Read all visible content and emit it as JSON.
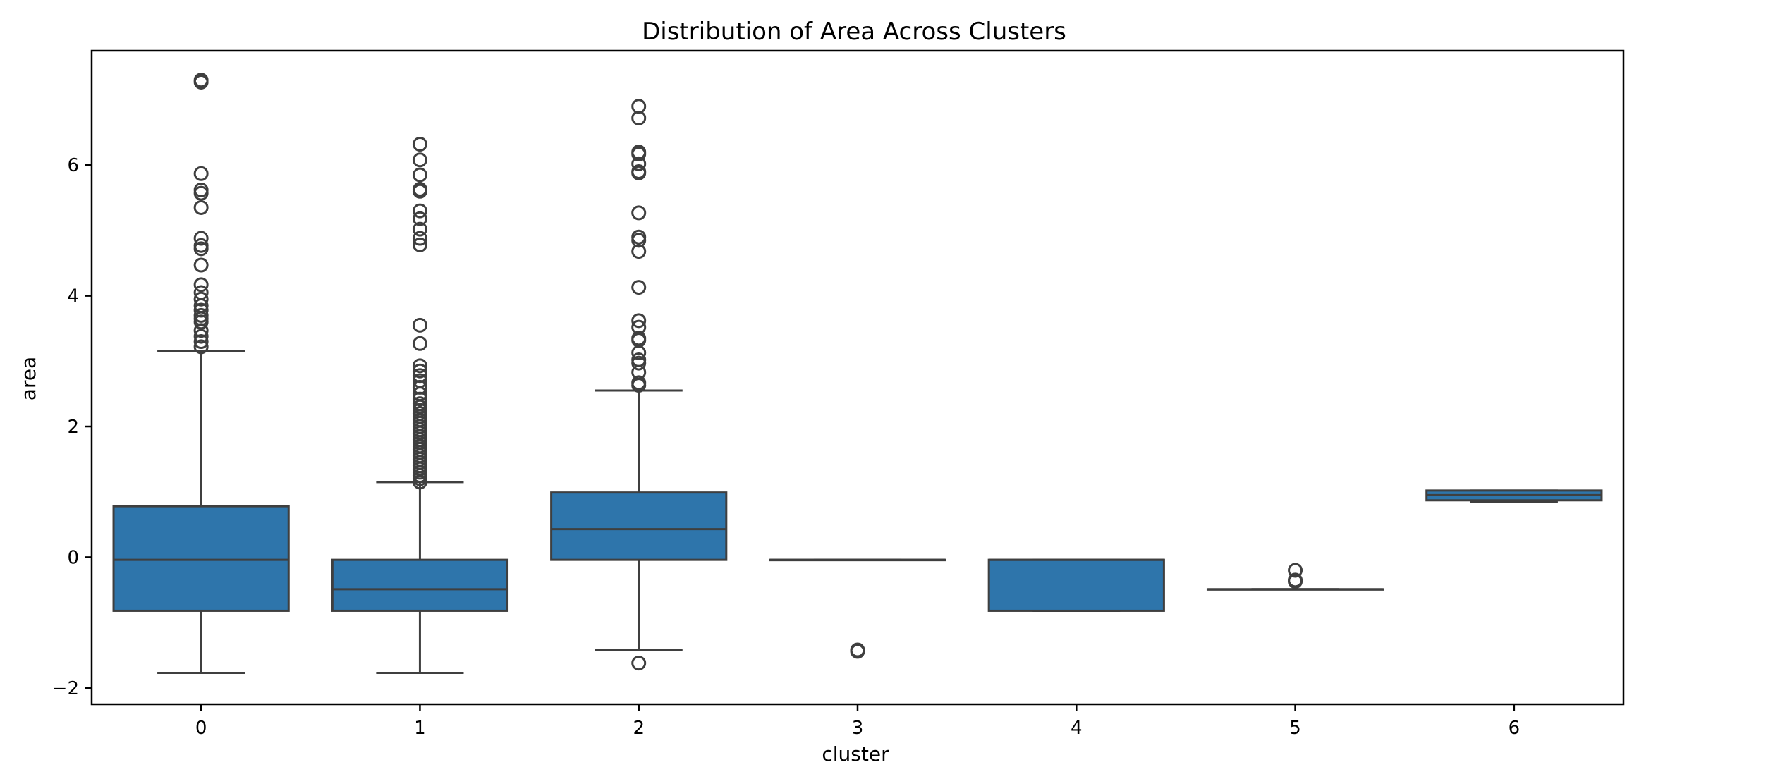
{
  "chart_data": {
    "type": "box",
    "title": "Distribution of Area Across Clusters",
    "xlabel": "cluster",
    "ylabel": "area",
    "categories": [
      "0",
      "1",
      "2",
      "3",
      "4",
      "5",
      "6"
    ],
    "ylim": [
      -2.25,
      7.75
    ],
    "yticks": [
      -2,
      0,
      2,
      4,
      6
    ],
    "ytick_labels": [
      "−2",
      "0",
      "2",
      "4",
      "6"
    ],
    "grid": false,
    "color": "#2e75ab",
    "boxes": [
      {
        "category": "0",
        "whislo": -1.77,
        "q1": -0.82,
        "median": -0.04,
        "q3": 0.78,
        "whishi": 3.15,
        "fliers": [
          3.22,
          3.3,
          3.38,
          3.47,
          3.6,
          3.65,
          3.7,
          3.78,
          3.85,
          3.95,
          4.05,
          4.17,
          4.47,
          4.72,
          4.77,
          4.88,
          5.35,
          5.57,
          5.62,
          5.87,
          7.27,
          7.3
        ]
      },
      {
        "category": "1",
        "whislo": -1.77,
        "q1": -0.82,
        "median": -0.49,
        "q3": -0.04,
        "whishi": 1.15,
        "fliers": [
          1.15,
          1.2,
          1.25,
          1.3,
          1.35,
          1.4,
          1.45,
          1.5,
          1.55,
          1.6,
          1.65,
          1.7,
          1.75,
          1.8,
          1.85,
          1.9,
          1.95,
          2.0,
          2.05,
          2.1,
          2.15,
          2.2,
          2.25,
          2.3,
          2.35,
          2.42,
          2.5,
          2.6,
          2.7,
          2.78,
          2.85,
          2.93,
          3.27,
          3.55,
          4.78,
          4.88,
          5.02,
          5.18,
          5.3,
          5.6,
          5.63,
          5.85,
          6.08,
          6.32
        ]
      },
      {
        "category": "2",
        "whislo": -1.42,
        "q1": -0.04,
        "median": 0.43,
        "q3": 0.99,
        "whishi": 2.55,
        "fliers": [
          -1.62,
          2.63,
          2.67,
          2.83,
          2.97,
          3.02,
          3.13,
          3.32,
          3.35,
          3.52,
          3.62,
          4.13,
          4.68,
          4.85,
          4.9,
          5.27,
          5.88,
          5.9,
          6.02,
          6.17,
          6.2,
          6.72,
          6.9
        ]
      },
      {
        "category": "3",
        "whislo": -0.04,
        "q1": -0.04,
        "median": -0.04,
        "q3": -0.04,
        "whishi": -0.04,
        "fliers": [
          -1.42,
          -1.44
        ]
      },
      {
        "category": "4",
        "whislo": -0.82,
        "q1": -0.82,
        "median": -0.04,
        "q3": -0.04,
        "whishi": -0.04,
        "fliers": []
      },
      {
        "category": "5",
        "whislo": -0.49,
        "q1": -0.49,
        "median": -0.49,
        "q3": -0.49,
        "whishi": -0.49,
        "fliers": [
          -0.2,
          -0.35,
          -0.37
        ]
      },
      {
        "category": "6",
        "whislo": 0.84,
        "q1": 0.87,
        "median": 0.95,
        "q3": 1.02,
        "whishi": 1.02,
        "fliers": []
      }
    ]
  }
}
